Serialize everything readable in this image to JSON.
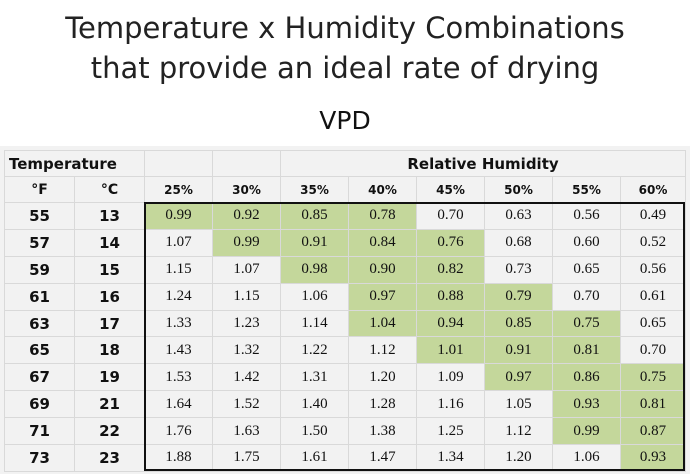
{
  "title_line1": "Temperature x Humidity Combinations",
  "title_line2": "that provide an ideal rate of drying",
  "subtitle": "VPD",
  "table": {
    "temperature_header": "Temperature",
    "rh_header": "Relative Humidity",
    "unit_f": "°F",
    "unit_c": "°C",
    "humidity_columns": [
      "25%",
      "30%",
      "35%",
      "40%",
      "45%",
      "50%",
      "55%",
      "60%"
    ],
    "rows": [
      {
        "f": "55",
        "c": "13",
        "values": [
          "0.99",
          "0.92",
          "0.85",
          "0.78",
          "0.70",
          "0.63",
          "0.56",
          "0.49"
        ],
        "green": [
          true,
          true,
          true,
          true,
          false,
          false,
          false,
          false
        ]
      },
      {
        "f": "57",
        "c": "14",
        "values": [
          "1.07",
          "0.99",
          "0.91",
          "0.84",
          "0.76",
          "0.68",
          "0.60",
          "0.52"
        ],
        "green": [
          false,
          true,
          true,
          true,
          true,
          false,
          false,
          false
        ]
      },
      {
        "f": "59",
        "c": "15",
        "values": [
          "1.15",
          "1.07",
          "0.98",
          "0.90",
          "0.82",
          "0.73",
          "0.65",
          "0.56"
        ],
        "green": [
          false,
          false,
          true,
          true,
          true,
          false,
          false,
          false
        ]
      },
      {
        "f": "61",
        "c": "16",
        "values": [
          "1.24",
          "1.15",
          "1.06",
          "0.97",
          "0.88",
          "0.79",
          "0.70",
          "0.61"
        ],
        "green": [
          false,
          false,
          false,
          true,
          true,
          true,
          false,
          false
        ]
      },
      {
        "f": "63",
        "c": "17",
        "values": [
          "1.33",
          "1.23",
          "1.14",
          "1.04",
          "0.94",
          "0.85",
          "0.75",
          "0.65"
        ],
        "green": [
          false,
          false,
          false,
          true,
          true,
          true,
          true,
          false
        ]
      },
      {
        "f": "65",
        "c": "18",
        "values": [
          "1.43",
          "1.32",
          "1.22",
          "1.12",
          "1.01",
          "0.91",
          "0.81",
          "0.70"
        ],
        "green": [
          false,
          false,
          false,
          false,
          true,
          true,
          true,
          false
        ]
      },
      {
        "f": "67",
        "c": "19",
        "values": [
          "1.53",
          "1.42",
          "1.31",
          "1.20",
          "1.09",
          "0.97",
          "0.86",
          "0.75"
        ],
        "green": [
          false,
          false,
          false,
          false,
          false,
          true,
          true,
          true
        ]
      },
      {
        "f": "69",
        "c": "21",
        "values": [
          "1.64",
          "1.52",
          "1.40",
          "1.28",
          "1.16",
          "1.05",
          "0.93",
          "0.81"
        ],
        "green": [
          false,
          false,
          false,
          false,
          false,
          false,
          true,
          true
        ]
      },
      {
        "f": "71",
        "c": "22",
        "values": [
          "1.76",
          "1.63",
          "1.50",
          "1.38",
          "1.25",
          "1.12",
          "0.99",
          "0.87"
        ],
        "green": [
          false,
          false,
          false,
          false,
          false,
          false,
          true,
          true
        ]
      },
      {
        "f": "73",
        "c": "23",
        "values": [
          "1.88",
          "1.75",
          "1.61",
          "1.47",
          "1.34",
          "1.20",
          "1.06",
          "0.93"
        ],
        "green": [
          false,
          false,
          false,
          false,
          false,
          false,
          false,
          true
        ]
      }
    ],
    "colors": {
      "green": "#c4d79b",
      "background": "#f2f2f2",
      "gridline": "#d9d9d9"
    }
  }
}
